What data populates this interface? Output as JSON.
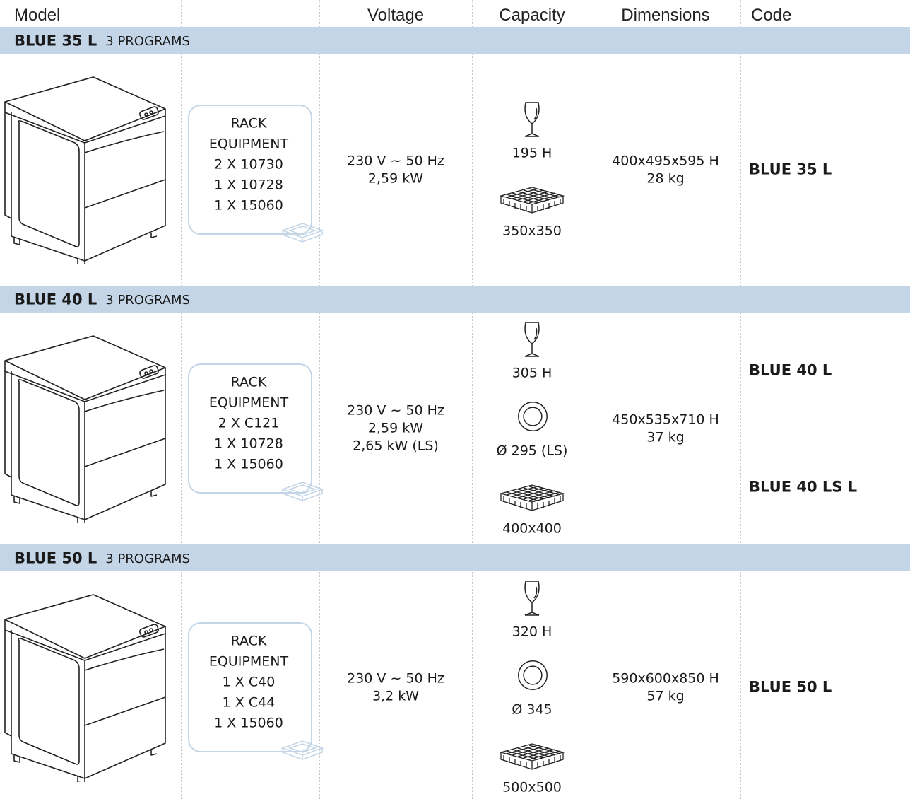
{
  "header": {
    "columns": [
      "Model",
      "Voltage",
      "Capacity",
      "Dimensions",
      "Code"
    ]
  },
  "sections": [
    {
      "model": "BLUE 35 L",
      "programs": "3 PROGRAMS",
      "rack": [
        "RACK",
        "EQUIPMENT",
        "2 X 10730",
        "1 X 10728",
        "1 X 15060"
      ],
      "voltage": [
        "230 V ~ 50 Hz",
        "2,59 kW"
      ],
      "capacity": [
        "195 H",
        "350x350"
      ],
      "dimensions": [
        "400x495x595 H",
        "28 kg"
      ],
      "codes": [
        "BLUE 35 L"
      ]
    },
    {
      "model": "BLUE 40 L",
      "programs": "3 PROGRAMS",
      "rack": [
        "RACK",
        "EQUIPMENT",
        "2 X C121",
        "1 X 10728",
        "1 X 15060"
      ],
      "voltage": [
        "230 V ~ 50 Hz",
        "2,59 kW",
        "2,65 kW (LS)"
      ],
      "capacity": [
        "305 H",
        "Ø 295 (LS)",
        "400x400"
      ],
      "dimensions": [
        "450x535x710 H",
        "37 kg"
      ],
      "codes": [
        "BLUE 40 L",
        "BLUE 40 LS L"
      ]
    },
    {
      "model": "BLUE 50 L",
      "programs": "3 PROGRAMS",
      "rack": [
        "RACK",
        "EQUIPMENT",
        "1 X C40",
        "1 X C44",
        "1 X 15060"
      ],
      "voltage": [
        "230 V ~ 50 Hz",
        "3,2 kW"
      ],
      "capacity": [
        "320 H",
        "Ø 345",
        "500x500"
      ],
      "dimensions": [
        "590x600x850 H",
        "57 kg"
      ],
      "codes": [
        "BLUE 50 L"
      ]
    }
  ]
}
